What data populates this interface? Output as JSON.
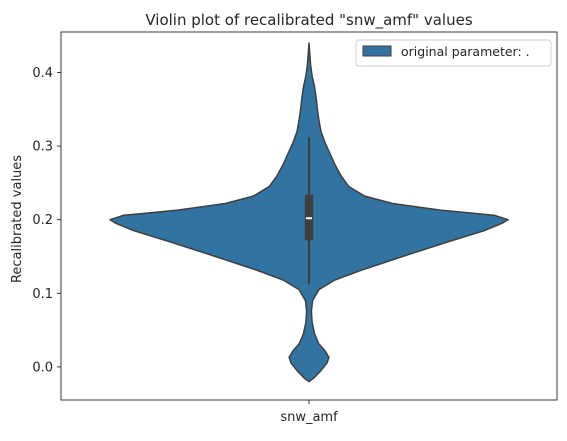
{
  "chart_data": {
    "type": "violin",
    "title": "Violin plot of recalibrated \"snw_amf\" values",
    "xlabel": "",
    "ylabel": "Recalibrated values",
    "categories": [
      "snw_amf"
    ],
    "ylim": [
      -0.045,
      0.455
    ],
    "yticks": [
      0.0,
      0.1,
      0.2,
      0.3,
      0.4
    ],
    "ytick_labels": [
      "0.0",
      "0.1",
      "0.2",
      "0.3",
      "0.4"
    ],
    "legend": {
      "label": "original parameter: .",
      "placement": "top-right"
    },
    "series": [
      {
        "name": "original parameter: .",
        "category": "snw_amf",
        "color": "#3274a1",
        "edge_color": "#3f3f3f",
        "box": {
          "q1": 0.172,
          "median": 0.202,
          "q3": 0.234,
          "whisker_low": 0.112,
          "whisker_high": 0.312
        },
        "density_profile": [
          {
            "y": -0.02,
            "w": 0.0
          },
          {
            "y": -0.015,
            "w": 0.025
          },
          {
            "y": -0.005,
            "w": 0.06
          },
          {
            "y": 0.005,
            "w": 0.09
          },
          {
            "y": 0.013,
            "w": 0.1
          },
          {
            "y": 0.022,
            "w": 0.08
          },
          {
            "y": 0.032,
            "w": 0.048
          },
          {
            "y": 0.045,
            "w": 0.028
          },
          {
            "y": 0.06,
            "w": 0.016
          },
          {
            "y": 0.075,
            "w": 0.012
          },
          {
            "y": 0.09,
            "w": 0.018
          },
          {
            "y": 0.105,
            "w": 0.05
          },
          {
            "y": 0.118,
            "w": 0.13
          },
          {
            "y": 0.132,
            "w": 0.27
          },
          {
            "y": 0.15,
            "w": 0.47
          },
          {
            "y": 0.17,
            "w": 0.7
          },
          {
            "y": 0.185,
            "w": 0.88
          },
          {
            "y": 0.195,
            "w": 0.97
          },
          {
            "y": 0.2,
            "w": 1.0
          },
          {
            "y": 0.206,
            "w": 0.93
          },
          {
            "y": 0.213,
            "w": 0.66
          },
          {
            "y": 0.222,
            "w": 0.42
          },
          {
            "y": 0.232,
            "w": 0.28
          },
          {
            "y": 0.245,
            "w": 0.2
          },
          {
            "y": 0.26,
            "w": 0.16
          },
          {
            "y": 0.275,
            "w": 0.13
          },
          {
            "y": 0.29,
            "w": 0.105
          },
          {
            "y": 0.305,
            "w": 0.08
          },
          {
            "y": 0.32,
            "w": 0.06
          },
          {
            "y": 0.335,
            "w": 0.05
          },
          {
            "y": 0.35,
            "w": 0.042
          },
          {
            "y": 0.365,
            "w": 0.036
          },
          {
            "y": 0.38,
            "w": 0.028
          },
          {
            "y": 0.395,
            "w": 0.016
          },
          {
            "y": 0.41,
            "w": 0.008
          },
          {
            "y": 0.425,
            "w": 0.004
          },
          {
            "y": 0.44,
            "w": 0.0
          }
        ]
      }
    ]
  }
}
